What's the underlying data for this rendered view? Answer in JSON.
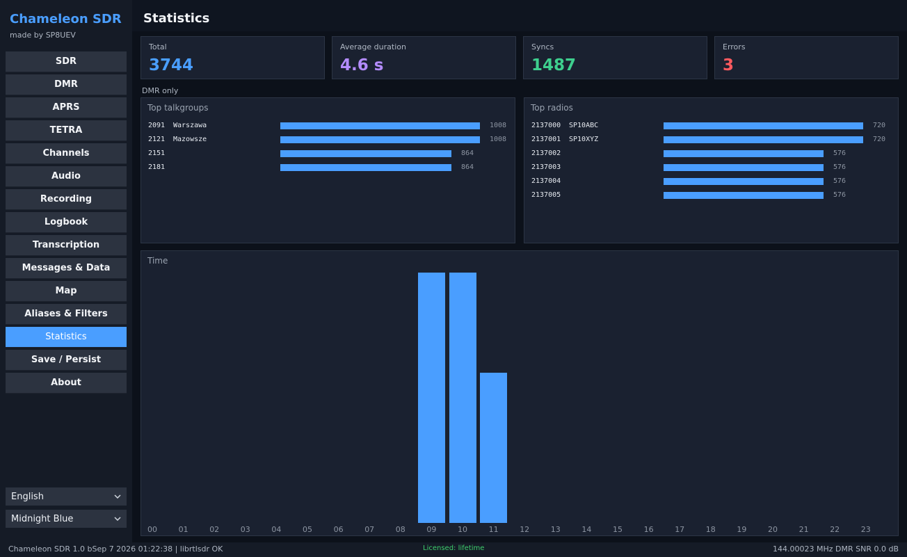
{
  "app": {
    "title": "Chameleon SDR",
    "subtitle": "made by SP8UEV"
  },
  "nav": [
    {
      "label": "SDR"
    },
    {
      "label": "DMR"
    },
    {
      "label": "APRS"
    },
    {
      "label": "TETRA"
    },
    {
      "label": "Channels"
    },
    {
      "label": "Audio"
    },
    {
      "label": "Recording"
    },
    {
      "label": "Logbook"
    },
    {
      "label": "Transcription"
    },
    {
      "label": "Messages & Data"
    },
    {
      "label": "Map"
    },
    {
      "label": "Aliases & Filters"
    },
    {
      "label": "Statistics",
      "active": true
    },
    {
      "label": "Save / Persist"
    },
    {
      "label": "About"
    }
  ],
  "language_select": {
    "value": "English"
  },
  "theme_select": {
    "value": "Midnight Blue"
  },
  "page": {
    "title": "Statistics"
  },
  "cards": [
    {
      "label": "Total",
      "value": "3744",
      "color": "#4a9eff"
    },
    {
      "label": "Average duration",
      "value": "4.6 s",
      "color": "#b48cff"
    },
    {
      "label": "Syncs",
      "value": "1487",
      "color": "#3ecf8e"
    },
    {
      "label": "Errors",
      "value": "3",
      "color": "#ff5a5f"
    }
  ],
  "dmr_only_label": "DMR only",
  "top_talkgroups": {
    "title": "Top talkgroups",
    "max": 1008,
    "rows": [
      {
        "id": "2091",
        "name": "Warszawa",
        "value": 1008
      },
      {
        "id": "2121",
        "name": "Mazowsze",
        "value": 1008
      },
      {
        "id": "2151",
        "name": "",
        "value": 864
      },
      {
        "id": "2181",
        "name": "",
        "value": 864
      }
    ]
  },
  "top_radios": {
    "title": "Top radios",
    "max": 720,
    "rows": [
      {
        "id": "2137000",
        "name": "SP10ABC",
        "value": 720
      },
      {
        "id": "2137001",
        "name": "SP10XYZ",
        "value": 720
      },
      {
        "id": "2137002",
        "name": "",
        "value": 576
      },
      {
        "id": "2137003",
        "name": "",
        "value": 576
      },
      {
        "id": "2137004",
        "name": "",
        "value": 576
      },
      {
        "id": "2137005",
        "name": "",
        "value": 576
      }
    ]
  },
  "chart_data": {
    "type": "bar",
    "title": "Time",
    "categories": [
      "00",
      "01",
      "02",
      "03",
      "04",
      "05",
      "06",
      "07",
      "08",
      "09",
      "10",
      "11",
      "12",
      "13",
      "14",
      "15",
      "16",
      "17",
      "18",
      "19",
      "20",
      "21",
      "22",
      "23"
    ],
    "values": [
      0,
      0,
      0,
      0,
      0,
      0,
      0,
      0,
      0,
      1440,
      1440,
      864,
      0,
      0,
      0,
      0,
      0,
      0,
      0,
      0,
      0,
      0,
      0,
      0
    ],
    "ylim": [
      0,
      1440
    ],
    "grid": false,
    "color": "#4a9eff"
  },
  "status": {
    "left": "Chameleon SDR 1.0  bSep  7 2026 01:22:38  |  librtlsdr OK",
    "license": "Licensed: lifetime",
    "right": "144.00023 MHz  DMR  SNR 0.0 dB"
  }
}
